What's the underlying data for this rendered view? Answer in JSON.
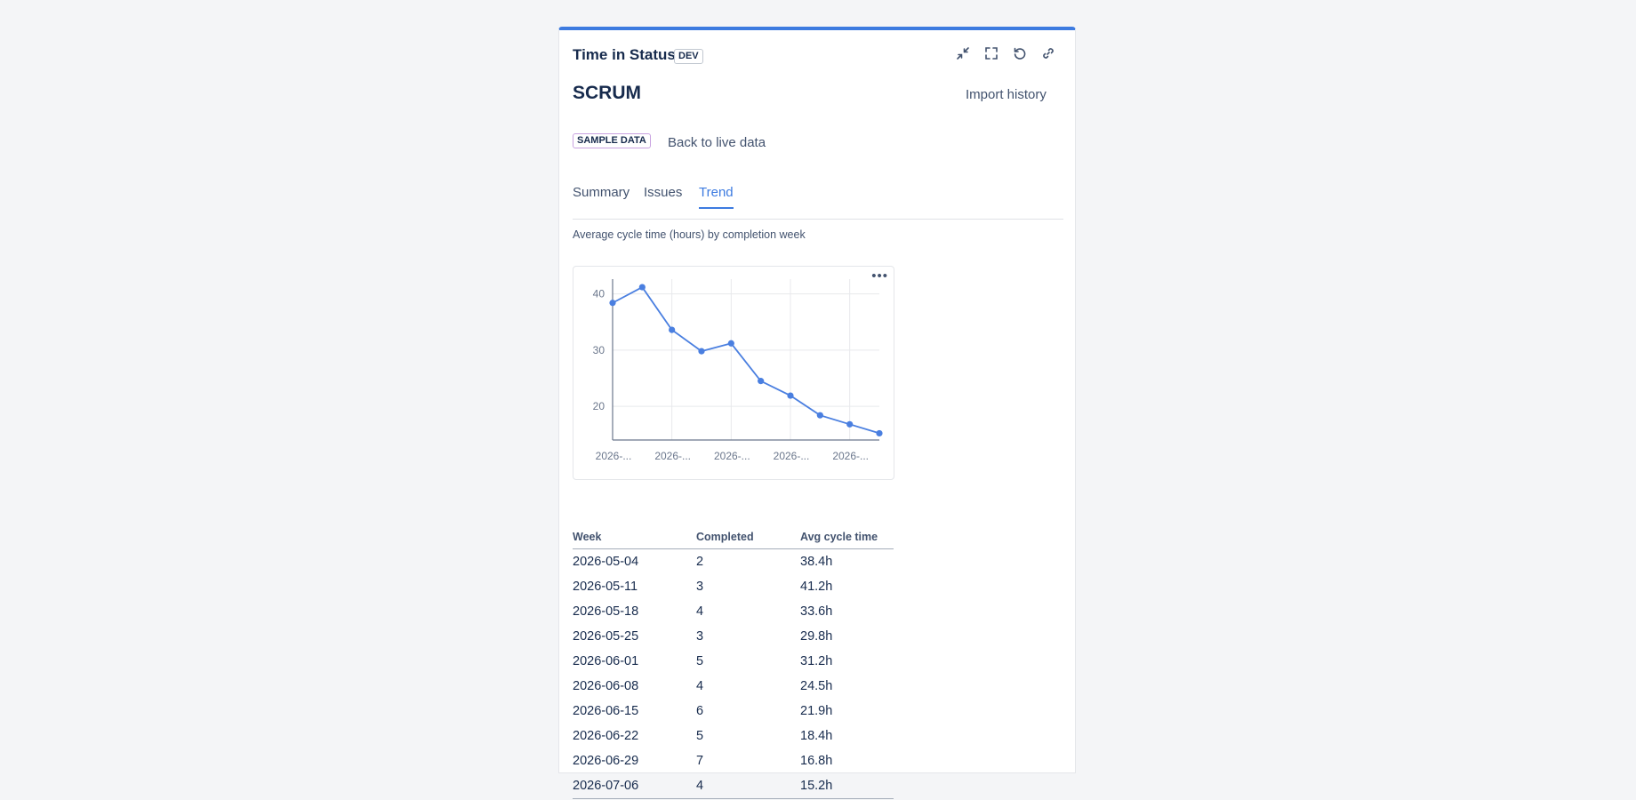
{
  "header": {
    "title": "Time in Status",
    "env_badge": "DEV",
    "icons": [
      "collapse-icon",
      "fullscreen-icon",
      "refresh-icon",
      "link-icon"
    ]
  },
  "project": {
    "name": "SCRUM",
    "import_label": "Import history"
  },
  "sample": {
    "badge": "SAMPLE DATA",
    "back_label": "Back to live data"
  },
  "tabs": [
    {
      "label": "Summary",
      "active": false
    },
    {
      "label": "Issues",
      "active": false
    },
    {
      "label": "Trend",
      "active": true
    }
  ],
  "chart_caption": "Average cycle time (hours) by completion week",
  "colors": {
    "accent": "#3d7be0",
    "sample_badge_border": "#c9a2e0",
    "line": "#4a7fe0"
  },
  "chart_data": {
    "type": "line",
    "title": "",
    "xlabel": "",
    "ylabel": "",
    "x": [
      "2026-05-04",
      "2026-05-11",
      "2026-05-18",
      "2026-05-25",
      "2026-06-01",
      "2026-06-08",
      "2026-06-15",
      "2026-06-22",
      "2026-06-29",
      "2026-07-06"
    ],
    "series": [
      {
        "values": [
          38.4,
          41.2,
          33.6,
          29.8,
          31.2,
          24.5,
          21.9,
          18.4,
          16.8,
          15.2
        ]
      }
    ],
    "xticks": [
      "2026-...",
      "2026-...",
      "2026-...",
      "2026-...",
      "2026-..."
    ],
    "yticks": [
      20,
      30,
      40
    ],
    "ylim": [
      14,
      42
    ],
    "grid": true,
    "legend": "none"
  },
  "table": {
    "columns": [
      "Week",
      "Completed",
      "Avg cycle time"
    ],
    "rows": [
      [
        "2026-05-04",
        "2",
        "38.4h"
      ],
      [
        "2026-05-11",
        "3",
        "41.2h"
      ],
      [
        "2026-05-18",
        "4",
        "33.6h"
      ],
      [
        "2026-05-25",
        "3",
        "29.8h"
      ],
      [
        "2026-06-01",
        "5",
        "31.2h"
      ],
      [
        "2026-06-08",
        "4",
        "24.5h"
      ],
      [
        "2026-06-15",
        "6",
        "21.9h"
      ],
      [
        "2026-06-22",
        "5",
        "18.4h"
      ],
      [
        "2026-06-29",
        "7",
        "16.8h"
      ],
      [
        "2026-07-06",
        "4",
        "15.2h"
      ]
    ]
  }
}
